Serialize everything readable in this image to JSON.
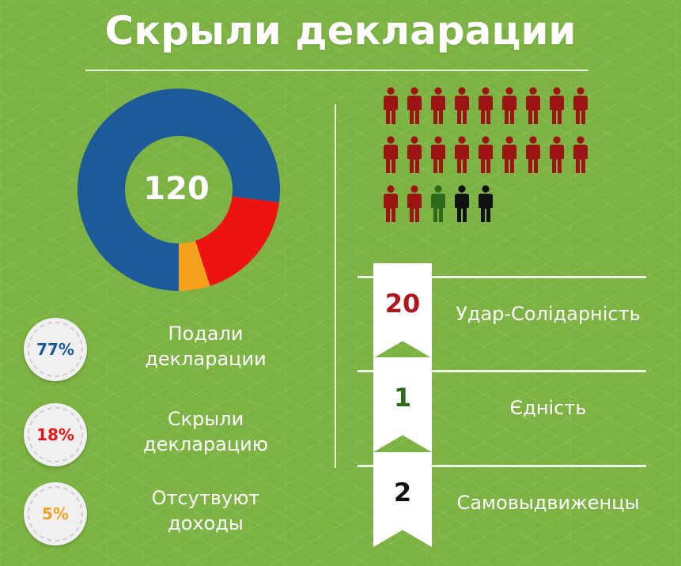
{
  "title": "Скрыли декларации",
  "donut": {
    "total_label": "120",
    "colors": {
      "filed": "#1c5a9a",
      "hidden": "#ee1313",
      "no_income": "#f5a01d"
    }
  },
  "legend": [
    {
      "percent": "77%",
      "label_line1": "Подали",
      "label_line2": "декларации",
      "color": "#1c5a9a"
    },
    {
      "percent": "18%",
      "label_line1": "Скрыли",
      "label_line2": "декларацию",
      "color": "#ee1313"
    },
    {
      "percent": "5%",
      "label_line1": "Отсутвуют",
      "label_line2": "доходы",
      "color": "#f5a01d"
    }
  ],
  "chart_data": [
    {
      "type": "pie",
      "center_label": "120",
      "categories": [
        "Подали декларации",
        "Скрыли декларацию",
        "Отсутвуют доходы"
      ],
      "values": [
        77,
        18,
        5
      ],
      "unit": "%",
      "colors": [
        "#1c5a9a",
        "#ee1313",
        "#f5a01d"
      ]
    },
    {
      "type": "bar",
      "pictogram": "person-icon",
      "categories": [
        "Удар-Солідарність",
        "Єдність",
        "Самовыдвиженцы"
      ],
      "values": [
        20,
        1,
        2
      ],
      "colors": [
        "#9c1414",
        "#2d6a1c",
        "#111111"
      ]
    }
  ],
  "parties": [
    {
      "count": "20",
      "name": "Удар-Солідарність",
      "color": "#b0161a"
    },
    {
      "count": "1",
      "name": "Єдність",
      "color": "#2d6a1c"
    },
    {
      "count": "2",
      "name": "Самовыдвиженцы",
      "color": "#111111"
    }
  ],
  "icons": {
    "person": "person-icon"
  }
}
